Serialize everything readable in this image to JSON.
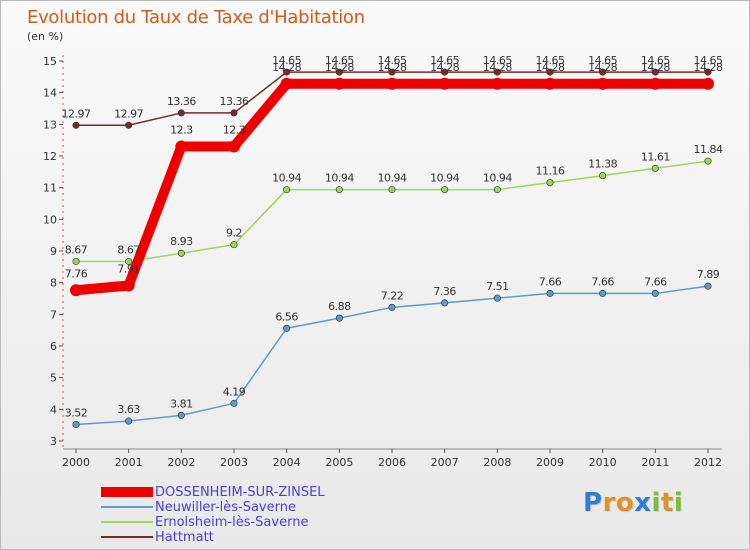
{
  "title": "Evolution du Taux de Taxe d'Habitation",
  "subtitle": "(en %)",
  "logo": {
    "letters": [
      {
        "ch": "P",
        "color": "#2e7fd3"
      },
      {
        "ch": "r",
        "color": "#e0912a"
      },
      {
        "ch": "o",
        "color": "#e0912a"
      },
      {
        "ch": "x",
        "color": "#2e7fd3"
      },
      {
        "ch": "i",
        "color": "#7cbd37"
      },
      {
        "ch": "t",
        "color": "#e0912a"
      },
      {
        "ch": "i",
        "color": "#7cbd37"
      }
    ]
  },
  "chart_data": {
    "type": "line",
    "x": [
      "2000",
      "2001",
      "2002",
      "2003",
      "2004",
      "2005",
      "2006",
      "2007",
      "2008",
      "2009",
      "2010",
      "2011",
      "2012"
    ],
    "ylim": [
      3,
      15
    ],
    "yticks": [
      "3",
      "4",
      "5",
      "6",
      "7",
      "8",
      "9",
      "10",
      "11",
      "12",
      "13",
      "14",
      "15"
    ],
    "grid": false,
    "legend_position": "bottom-left",
    "series": [
      {
        "name": "DOSSENHEIM-SUR-ZINSEL",
        "color": "#ee0000",
        "width": 10,
        "marker": 6,
        "values": [
          7.76,
          7.91,
          12.3,
          12.3,
          14.28,
          14.28,
          14.28,
          14.28,
          14.28,
          14.28,
          14.28,
          14.28,
          14.28
        ],
        "labels": [
          "7.76",
          "7.91",
          "12.3",
          "12.3",
          "14.28",
          "14.28",
          "14.28",
          "14.28",
          "14.28",
          "14.28",
          "14.28",
          "14.28",
          "14.28"
        ]
      },
      {
        "name": "Neuwiller-lès-Saverne",
        "color": "#5b9bd0",
        "width": 1.5,
        "marker": 3.2,
        "values": [
          3.52,
          3.63,
          3.81,
          4.19,
          6.56,
          6.88,
          7.22,
          7.36,
          7.51,
          7.66,
          7.66,
          7.66,
          7.89
        ],
        "labels": [
          "3.52",
          "3.63",
          "3.81",
          "4.19",
          "6.56",
          "6.88",
          "7.22",
          "7.36",
          "7.51",
          "7.66",
          "7.66",
          "7.66",
          "7.89"
        ]
      },
      {
        "name": "Ernolsheim-lès-Saverne",
        "color": "#9bd85a",
        "width": 1.5,
        "marker": 3.2,
        "values": [
          8.67,
          8.67,
          8.93,
          9.2,
          10.94,
          10.94,
          10.94,
          10.94,
          10.94,
          11.16,
          11.38,
          11.61,
          11.84
        ],
        "labels": [
          "8.67",
          "8.67",
          "8.93",
          "9.2",
          "10.94",
          "10.94",
          "10.94",
          "10.94",
          "10.94",
          "11.16",
          "11.38",
          "11.61",
          "11.84"
        ]
      },
      {
        "name": "Hattmatt",
        "color": "#7a2a2a",
        "width": 1.5,
        "marker": 3.2,
        "values": [
          12.97,
          12.97,
          13.36,
          13.36,
          14.65,
          14.65,
          14.65,
          14.65,
          14.65,
          14.65,
          14.65,
          14.65,
          14.65
        ],
        "labels": [
          "12.97",
          "12.97",
          "13.36",
          "13.36",
          "14.65",
          "14.65",
          "14.65",
          "14.65",
          "14.65",
          "14.65",
          "14.65",
          "14.65",
          "14.65"
        ]
      }
    ]
  }
}
